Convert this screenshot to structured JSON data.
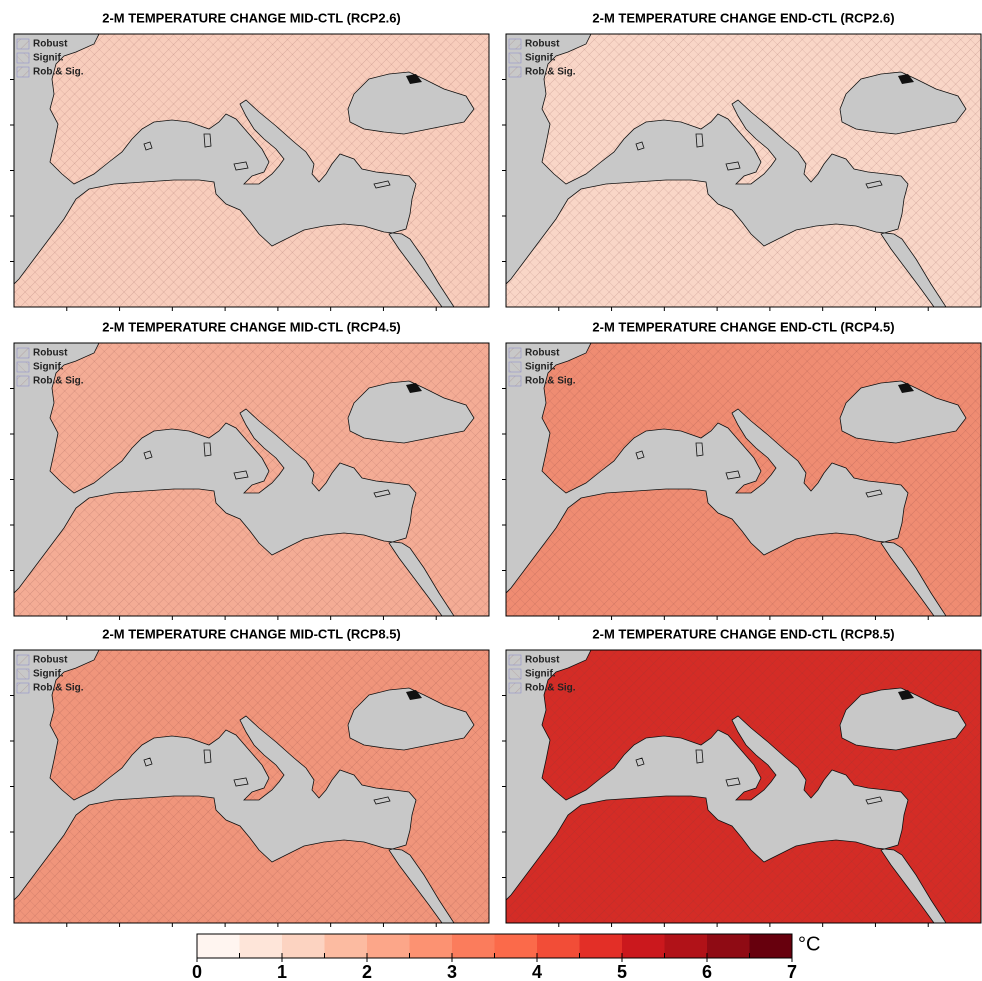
{
  "panels": [
    {
      "title": "2-M TEMPERATURE CHANGE MID-CTL (RCP2.6)",
      "fill": "#f8cdbc"
    },
    {
      "title": "2-M TEMPERATURE CHANGE END-CTL (RCP2.6)",
      "fill": "#f9d6c7"
    },
    {
      "title": "2-M TEMPERATURE CHANGE MID-CTL (RCP4.5)",
      "fill": "#f4ac95"
    },
    {
      "title": "2-M TEMPERATURE CHANGE END-CTL (RCP4.5)",
      "fill": "#ef8c72"
    },
    {
      "title": "2-M TEMPERATURE CHANGE MID-CTL (RCP8.5)",
      "fill": "#f0957b"
    },
    {
      "title": "2-M TEMPERATURE CHANGE END-CTL (RCP8.5)",
      "fill": "#d42c26"
    }
  ],
  "legend": [
    "Robust",
    "Signif.",
    "Rob.& Sig."
  ],
  "colorbar": {
    "colors": [
      "#fff5f0",
      "#fee5d9",
      "#fcd3c1",
      "#fcbba1",
      "#fca689",
      "#fc9272",
      "#fb7c5c",
      "#fb6a4a",
      "#f24d37",
      "#e32f27",
      "#cb181d",
      "#b11218",
      "#8f0b14",
      "#67000d"
    ],
    "ticks": [
      0,
      1,
      2,
      3,
      4,
      5,
      6,
      7
    ],
    "unit": "°C"
  }
}
